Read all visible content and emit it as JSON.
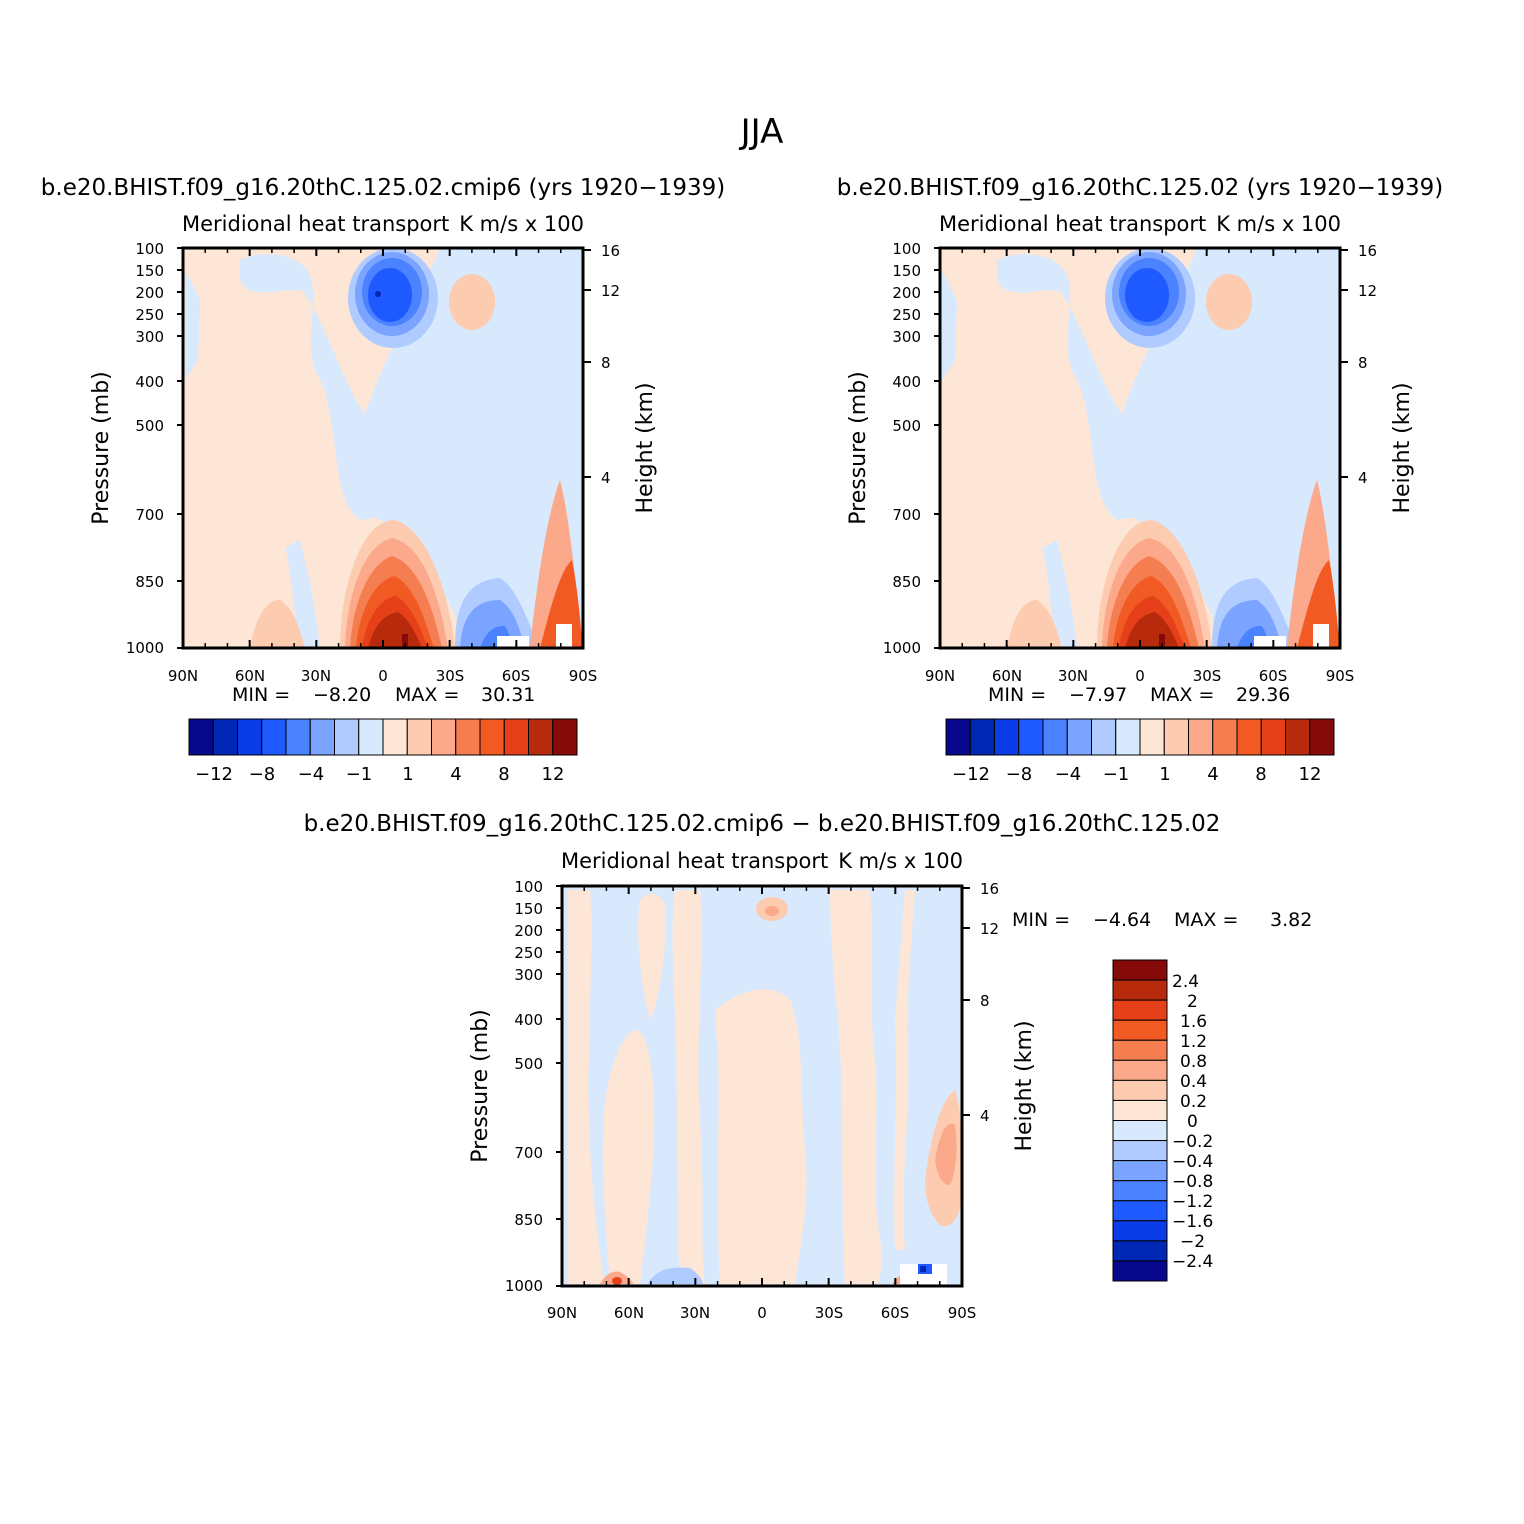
{
  "suptitle": "JJA",
  "colors": {
    "neg": [
      "#08088c",
      "#0026b4",
      "#0a3de8",
      "#1e5aff",
      "#4a82ff",
      "#7aa4ff",
      "#b0cbff",
      "#d8e9fd"
    ],
    "pos": [
      "#fde6d6",
      "#fccbb0",
      "#fba98a",
      "#f57e50",
      "#f25a24",
      "#e6401a",
      "#b82a0c",
      "#850a0a"
    ]
  },
  "chart_data": [
    {
      "type": "contour",
      "title": "b.e20.BHIST.f09_g16.20thC.125.02.cmip6 (yrs 1920−1939)",
      "subtitle_left": "Meridional heat transport",
      "subtitle_right": "K m/s x 100",
      "xlabel": "",
      "ylabel": "Pressure (mb)",
      "y2label": "Height (km)",
      "x_ticks": [
        "90N",
        "60N",
        "30N",
        "0",
        "30S",
        "60S",
        "90S"
      ],
      "y_ticks": [
        "100",
        "150",
        "200",
        "250",
        "300",
        "400",
        "500",
        "700",
        "850",
        "1000"
      ],
      "y2_ticks": [
        "16",
        "12",
        "8",
        "4"
      ],
      "min_label": "MIN =",
      "min_value": "−8.20",
      "max_label": "MAX =",
      "max_value": "30.31",
      "colorbar_labels": [
        "−12",
        "−8",
        "−4",
        "−1",
        "1",
        "4",
        "8",
        "12"
      ],
      "features": [
        {
          "desc": "upper tropospheric negative core",
          "lat": 0,
          "p": 200,
          "value": -8.2
        },
        {
          "desc": "upper tropospheric positive lobe",
          "lat": -25,
          "p": 230,
          "value": 3
        },
        {
          "desc": "lower tropospheric positive core",
          "lat": -8,
          "p": 1000,
          "value": 30.31
        },
        {
          "desc": "southern midlatitude negative",
          "lat": -45,
          "p": 960,
          "value": -6
        },
        {
          "desc": "polar boundary positive",
          "lat": -85,
          "p": 950,
          "value": 12
        }
      ]
    },
    {
      "type": "contour",
      "title": "b.e20.BHIST.f09_g16.20thC.125.02 (yrs 1920−1939)",
      "subtitle_left": "Meridional heat transport",
      "subtitle_right": "K m/s x 100",
      "xlabel": "",
      "ylabel": "Pressure (mb)",
      "y2label": "Height (km)",
      "x_ticks": [
        "90N",
        "60N",
        "30N",
        "0",
        "30S",
        "60S",
        "90S"
      ],
      "y_ticks": [
        "100",
        "150",
        "200",
        "250",
        "300",
        "400",
        "500",
        "700",
        "850",
        "1000"
      ],
      "y2_ticks": [
        "16",
        "12",
        "8",
        "4"
      ],
      "min_label": "MIN =",
      "min_value": "−7.97",
      "max_label": "MAX =",
      "max_value": "29.36",
      "colorbar_labels": [
        "−12",
        "−8",
        "−4",
        "−1",
        "1",
        "4",
        "8",
        "12"
      ],
      "features": [
        {
          "desc": "upper tropospheric negative core",
          "lat": 0,
          "p": 200,
          "value": -7.97
        },
        {
          "desc": "upper tropospheric positive lobe",
          "lat": -25,
          "p": 230,
          "value": 3
        },
        {
          "desc": "lower tropospheric positive core",
          "lat": -8,
          "p": 1000,
          "value": 29.36
        },
        {
          "desc": "southern midlatitude negative",
          "lat": -45,
          "p": 960,
          "value": -6
        },
        {
          "desc": "polar boundary positive",
          "lat": -85,
          "p": 950,
          "value": 12
        }
      ]
    },
    {
      "type": "contour",
      "title": "b.e20.BHIST.f09_g16.20thC.125.02.cmip6 − b.e20.BHIST.f09_g16.20thC.125.02",
      "subtitle_left": "Meridional heat transport",
      "subtitle_right": "K m/s x 100",
      "xlabel": "",
      "ylabel": "Pressure (mb)",
      "y2label": "Height (km)",
      "x_ticks": [
        "90N",
        "60N",
        "30N",
        "0",
        "30S",
        "60S",
        "90S"
      ],
      "y_ticks": [
        "100",
        "150",
        "200",
        "250",
        "300",
        "400",
        "500",
        "700",
        "850",
        "1000"
      ],
      "y2_ticks": [
        "16",
        "12",
        "8",
        "4"
      ],
      "min_label": "MIN =",
      "min_value": "−4.64",
      "max_label": "MAX =",
      "max_value": "3.82",
      "colorbar_labels": [
        "2.4",
        "2",
        "1.6",
        "1.2",
        "0.8",
        "0.4",
        "0.2",
        "0",
        "−0.2",
        "−0.4",
        "−0.8",
        "−1.2",
        "−1.6",
        "−2",
        "−2.4"
      ],
      "features": [
        {
          "desc": "upper level positive spot",
          "lat": -5,
          "p": 150,
          "value": 0.4
        },
        {
          "desc": "polar boundary positive patch",
          "lat": -85,
          "p": 700,
          "value": 0.8
        },
        {
          "desc": "surface negative spot",
          "lat": -75,
          "p": 990,
          "value": -4.64
        },
        {
          "desc": "surface positive spot",
          "lat": 62,
          "p": 1000,
          "value": 3.82
        }
      ]
    }
  ]
}
